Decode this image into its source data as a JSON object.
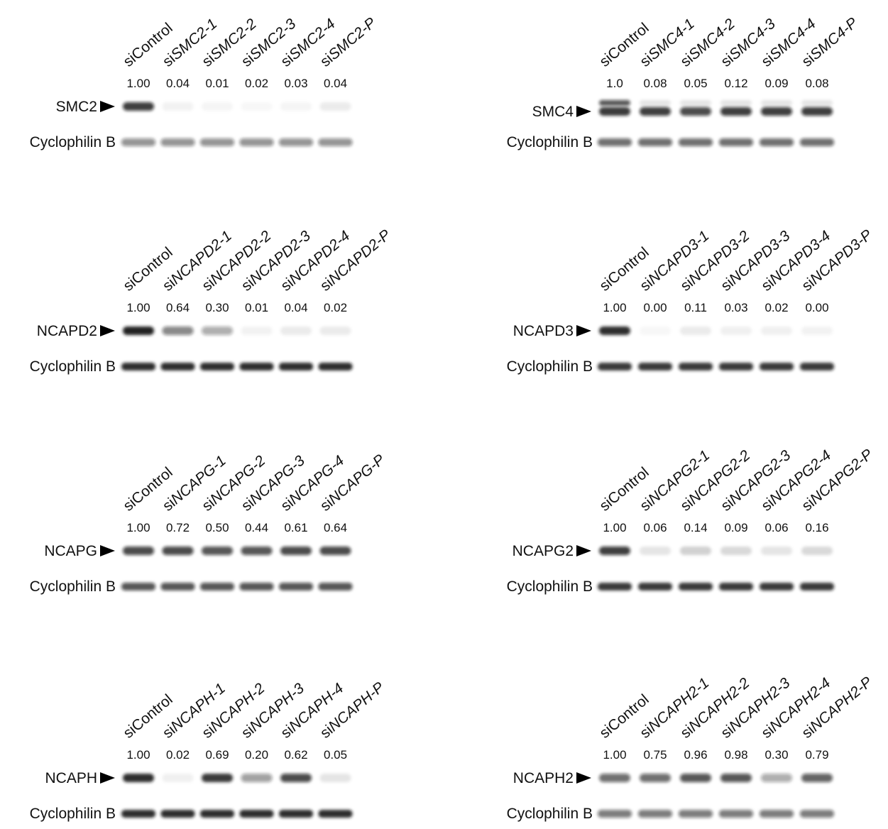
{
  "panels": [
    {
      "target": "SMC2",
      "loading": "Cyclophilin B",
      "lanes": [
        {
          "prefix": "si",
          "name": "Control",
          "italic": false
        },
        {
          "prefix": "si",
          "name": "SMC2-1",
          "italic": true
        },
        {
          "prefix": "si",
          "name": "SMC2-2",
          "italic": true
        },
        {
          "prefix": "si",
          "name": "SMC2-3",
          "italic": true
        },
        {
          "prefix": "si",
          "name": "SMC2-4",
          "italic": true
        },
        {
          "prefix": "si",
          "name": "SMC2-P",
          "italic": true
        }
      ],
      "quant": [
        "1.00",
        "0.04",
        "0.01",
        "0.02",
        "0.03",
        "0.04"
      ]
    },
    {
      "target": "SMC4",
      "loading": "Cyclophilin B",
      "lanes": [
        {
          "prefix": "si",
          "name": "Control",
          "italic": false
        },
        {
          "prefix": "si",
          "name": "SMC4-1",
          "italic": true
        },
        {
          "prefix": "si",
          "name": "SMC4-2",
          "italic": true
        },
        {
          "prefix": "si",
          "name": "SMC4-3",
          "italic": true
        },
        {
          "prefix": "si",
          "name": "SMC4-4",
          "italic": true
        },
        {
          "prefix": "si",
          "name": "SMC4-P",
          "italic": true
        }
      ],
      "quant": [
        "1.0",
        "0.08",
        "0.05",
        "0.12",
        "0.09",
        "0.08"
      ]
    },
    {
      "target": "NCAPD2",
      "loading": "Cyclophilin B",
      "lanes": [
        {
          "prefix": "si",
          "name": "Control",
          "italic": false
        },
        {
          "prefix": "si",
          "name": "NCAPD2-1",
          "italic": true
        },
        {
          "prefix": "si",
          "name": "NCAPD2-2",
          "italic": true
        },
        {
          "prefix": "si",
          "name": "NCAPD2-3",
          "italic": true
        },
        {
          "prefix": "si",
          "name": "NCAPD2-4",
          "italic": true
        },
        {
          "prefix": "si",
          "name": "NCAPD2-P",
          "italic": true
        }
      ],
      "quant": [
        "1.00",
        "0.64",
        "0.30",
        "0.01",
        "0.04",
        "0.02"
      ]
    },
    {
      "target": "NCAPD3",
      "loading": "Cyclophilin B",
      "lanes": [
        {
          "prefix": "si",
          "name": "Control",
          "italic": false
        },
        {
          "prefix": "si",
          "name": "NCAPD3-1",
          "italic": true
        },
        {
          "prefix": "si",
          "name": "NCAPD3-2",
          "italic": true
        },
        {
          "prefix": "si",
          "name": "NCAPD3-3",
          "italic": true
        },
        {
          "prefix": "si",
          "name": "NCAPD3-4",
          "italic": true
        },
        {
          "prefix": "si",
          "name": "NCAPD3-P",
          "italic": true
        }
      ],
      "quant": [
        "1.00",
        "0.00",
        "0.11",
        "0.03",
        "0.02",
        "0.00"
      ]
    },
    {
      "target": "NCAPG",
      "loading": "Cyclophilin B",
      "lanes": [
        {
          "prefix": "si",
          "name": "Control",
          "italic": false
        },
        {
          "prefix": "si",
          "name": "NCAPG-1",
          "italic": true
        },
        {
          "prefix": "si",
          "name": "NCAPG-2",
          "italic": true
        },
        {
          "prefix": "si",
          "name": "NCAPG-3",
          "italic": true
        },
        {
          "prefix": "si",
          "name": "NCAPG-4",
          "italic": true
        },
        {
          "prefix": "si",
          "name": "NCAPG-P",
          "italic": true
        }
      ],
      "quant": [
        "1.00",
        "0.72",
        "0.50",
        "0.44",
        "0.61",
        "0.64"
      ]
    },
    {
      "target": "NCAPG2",
      "loading": "Cyclophilin B",
      "lanes": [
        {
          "prefix": "si",
          "name": "Control",
          "italic": false
        },
        {
          "prefix": "si",
          "name": "NCAPG2-1",
          "italic": true
        },
        {
          "prefix": "si",
          "name": "NCAPG2-2",
          "italic": true
        },
        {
          "prefix": "si",
          "name": "NCAPG2-3",
          "italic": true
        },
        {
          "prefix": "si",
          "name": "NCAPG2-4",
          "italic": true
        },
        {
          "prefix": "si",
          "name": "NCAPG2-P",
          "italic": true
        }
      ],
      "quant": [
        "1.00",
        "0.06",
        "0.14",
        "0.09",
        "0.06",
        "0.16"
      ]
    },
    {
      "target": "NCAPH",
      "loading": "Cyclophilin B",
      "lanes": [
        {
          "prefix": "si",
          "name": "Control",
          "italic": false
        },
        {
          "prefix": "si",
          "name": "NCAPH-1",
          "italic": true
        },
        {
          "prefix": "si",
          "name": "NCAPH-2",
          "italic": true
        },
        {
          "prefix": "si",
          "name": "NCAPH-3",
          "italic": true
        },
        {
          "prefix": "si",
          "name": "NCAPH-4",
          "italic": true
        },
        {
          "prefix": "si",
          "name": "NCAPH-P",
          "italic": true
        }
      ],
      "quant": [
        "1.00",
        "0.02",
        "0.69",
        "0.20",
        "0.62",
        "0.05"
      ]
    },
    {
      "target": "NCAPH2",
      "loading": "Cyclophilin B",
      "lanes": [
        {
          "prefix": "si",
          "name": "Control",
          "italic": false
        },
        {
          "prefix": "si",
          "name": "NCAPH2-1",
          "italic": true
        },
        {
          "prefix": "si",
          "name": "NCAPH2-2",
          "italic": true
        },
        {
          "prefix": "si",
          "name": "NCAPH2-3",
          "italic": true
        },
        {
          "prefix": "si",
          "name": "NCAPH2-4",
          "italic": true
        },
        {
          "prefix": "si",
          "name": "NCAPH2-P",
          "italic": true
        }
      ],
      "quant": [
        "1.00",
        "0.75",
        "0.96",
        "0.98",
        "0.30",
        "0.79"
      ]
    }
  ]
}
